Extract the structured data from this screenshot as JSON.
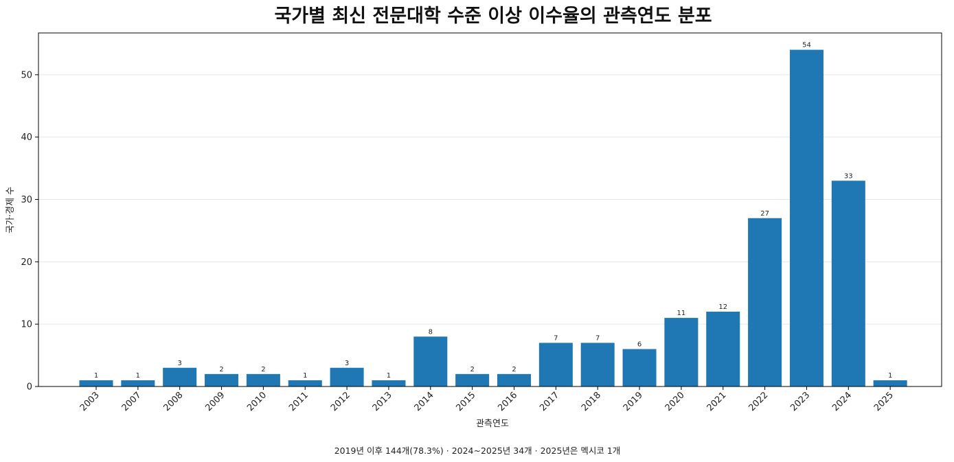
{
  "chart_data": {
    "type": "bar",
    "title": "국가별 최신 전문대학 수준 이상 이수율의 관측연도 분포",
    "xlabel": "관측연도",
    "ylabel": "국가·경제 수",
    "categories": [
      "2003",
      "2007",
      "2008",
      "2009",
      "2010",
      "2011",
      "2012",
      "2013",
      "2014",
      "2015",
      "2016",
      "2017",
      "2018",
      "2019",
      "2020",
      "2021",
      "2022",
      "2023",
      "2024",
      "2025"
    ],
    "values": [
      1,
      1,
      3,
      2,
      2,
      1,
      3,
      1,
      8,
      2,
      2,
      7,
      7,
      6,
      11,
      12,
      27,
      54,
      33,
      1
    ],
    "ylim": [
      0,
      56.7
    ],
    "yticks": [
      0,
      10,
      20,
      30,
      40,
      50
    ],
    "bar_color": "#1f77b4",
    "grid": "horizontal",
    "data_labels": true,
    "footnote": "2019년 이후 144개(78.3%) · 2024~2025년 34개 · 2025년은 멕시코 1개"
  }
}
